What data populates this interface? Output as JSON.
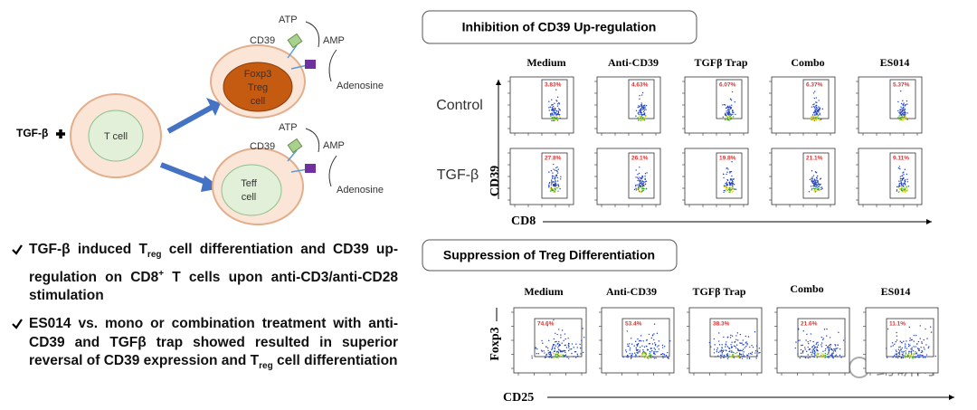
{
  "diagram": {
    "tgf_label": "TGF-β",
    "t_cell": "T cell",
    "treg_lines": [
      "Foxp3",
      "Treg",
      "cell"
    ],
    "teff_lines": [
      "Teff",
      "cell"
    ],
    "top": {
      "cd39": "CD39",
      "atp": "ATP",
      "amp": "AMP",
      "adenosine": "Adenosine"
    },
    "bottom": {
      "cd39": "CD39",
      "atp": "ATP",
      "amp": "AMP",
      "adenosine": "Adenosine"
    }
  },
  "bullets": [
    {
      "parts": [
        {
          "t": "TGF-β induced T"
        },
        {
          "t": "reg",
          "sub": true
        },
        {
          "t": " cell differentiation and CD39 up-regulation on CD8"
        },
        {
          "t": "+",
          "sup": true
        },
        {
          "t": " T cells upon anti-CD3/anti-CD28 stimulation"
        }
      ]
    },
    {
      "parts": [
        {
          "t": "ES014 vs. mono or combination treatment with anti-CD39 and TGFβ trap showed resulted in superior reversal of CD39 expression and T"
        },
        {
          "t": "reg",
          "sub": true
        },
        {
          "t": " cell differentiation"
        }
      ]
    }
  ],
  "panel1": {
    "title": "Inhibition of CD39 Up-regulation",
    "columns": [
      "Medium",
      "Anti-CD39",
      "TGFβ Trap",
      "Combo",
      "ES014"
    ],
    "rows": [
      "Control",
      "TGF-β"
    ],
    "percentages": [
      [
        "3.83%",
        "4.63%",
        "6.07%",
        "6.37%",
        "5.37%"
      ],
      [
        "27.8%",
        "26.1%",
        "19.8%",
        "21.1%",
        "9.11%"
      ]
    ],
    "y_axis": "CD39",
    "x_axis": "CD8"
  },
  "panel2": {
    "title": "Suppression of Treg Differentiation",
    "columns": [
      "Medium",
      "Anti-CD39",
      "TGFβ Trap",
      "Combo",
      "ES014"
    ],
    "percentages": [
      "74.6%",
      "53.4%",
      "38.3%",
      "21.6%",
      "11.1%"
    ],
    "y_axis": "Foxp3",
    "x_axis": "CD25"
  },
  "watermark": "药研网"
}
